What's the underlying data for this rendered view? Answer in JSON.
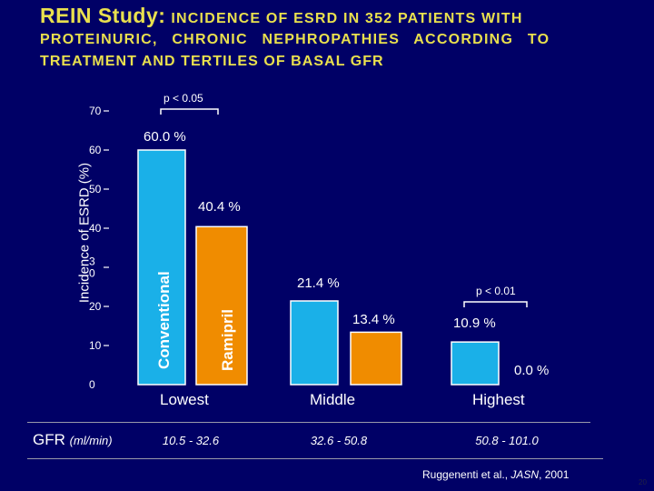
{
  "title": {
    "study": "REIN Study:",
    "line1_rest": "INCIDENCE OF ESRD IN 352 PATIENTS WITH",
    "line2": "PROTEINURIC, CHRONIC NEPHROPATHIES ACCORDING TO",
    "line3": "TREATMENT AND TERTILES OF BASAL GFR"
  },
  "colors": {
    "background": "#000066",
    "title": "#e9e04e",
    "conventional": "#1ab0e8",
    "ramipril": "#f08c00"
  },
  "chart_data": {
    "type": "bar",
    "ylabel": "Incidence of ESRD (%)",
    "ylim": [
      0,
      70
    ],
    "yticks": [
      "0",
      "10",
      "20",
      "3\n0",
      "40",
      "50",
      "60",
      "70"
    ],
    "categories": [
      "Lowest",
      "Middle",
      "Highest"
    ],
    "series": [
      {
        "name": "Conventional",
        "values": [
          60.0,
          21.4,
          10.9
        ],
        "labels": [
          "60.0 %",
          "21.4 %",
          "10.9 %"
        ]
      },
      {
        "name": "Ramipril",
        "values": [
          40.4,
          13.4,
          0.0
        ],
        "labels": [
          "40.4 %",
          "13.4 %",
          "0.0 %"
        ]
      }
    ],
    "annotations": [
      "p < 0.05",
      "p < 0.01"
    ]
  },
  "gfr": {
    "label": "GFR",
    "unit": "(ml/min)",
    "ranges": [
      "10.5 - 32.6",
      "32.6 - 50.8",
      "50.8 - 101.0"
    ]
  },
  "citation": {
    "authors": "Ruggenenti et al., ",
    "journal": "JASN",
    "year": ", 2001"
  },
  "page_number": "20"
}
